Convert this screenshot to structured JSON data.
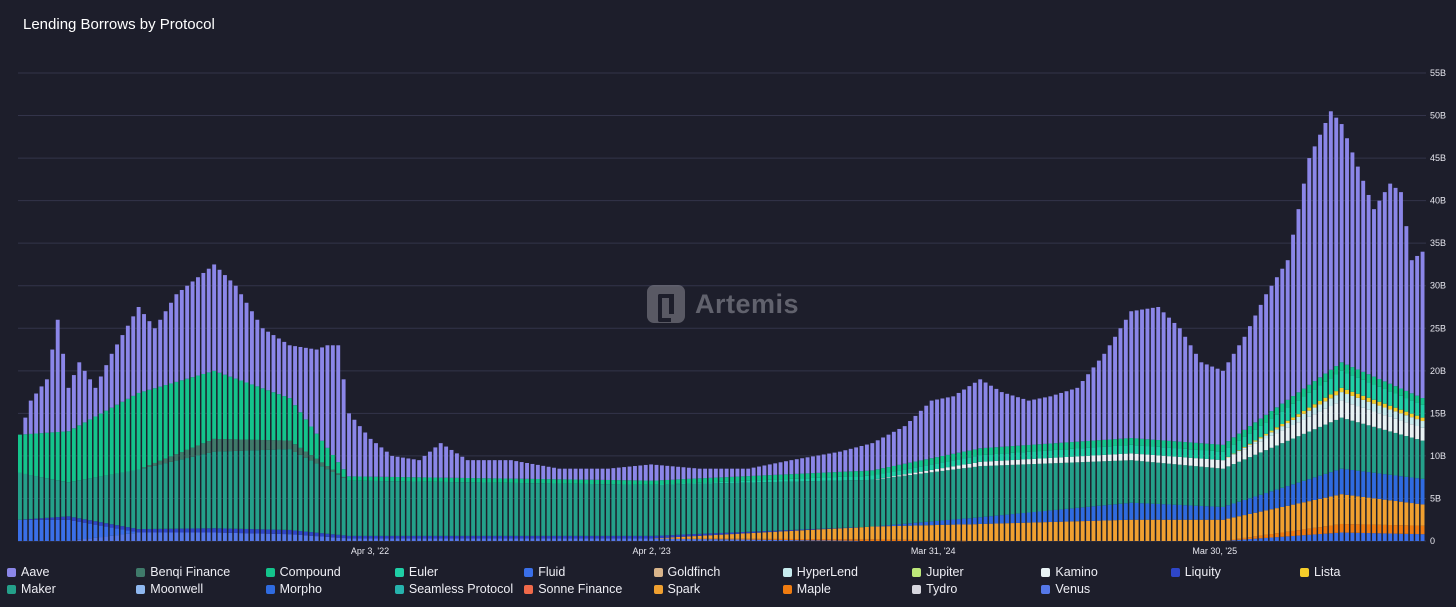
{
  "chart_data": {
    "type": "bar",
    "stacked": true,
    "title": "Lending Borrows by Protocol",
    "xlabel": "",
    "ylabel": "",
    "y_axis_side": "right",
    "ylim": [
      0,
      55
    ],
    "y_unit": "B",
    "y_ticks": [
      "0",
      "5B",
      "10B",
      "15B",
      "20B",
      "25B",
      "30B",
      "35B",
      "40B",
      "45B",
      "50B",
      "55B"
    ],
    "grid": true,
    "legend_position": "bottom",
    "x_range": [
      "2021-01-03",
      "2025-12-28"
    ],
    "bar_interval": "weekly",
    "x_tick_labels": [
      {
        "date": "2022-04-03",
        "label": "Apr 3, '22"
      },
      {
        "date": "2023-04-02",
        "label": "Apr 2, '23"
      },
      {
        "date": "2024-03-31",
        "label": "Mar 31, '24"
      },
      {
        "date": "2025-03-30",
        "label": "Mar 30, '25"
      }
    ],
    "series": [
      {
        "name": "Aave",
        "color": "#8b86e8"
      },
      {
        "name": "Benqi Finance",
        "color": "#3f7a6a"
      },
      {
        "name": "Compound",
        "color": "#14c48c"
      },
      {
        "name": "Euler",
        "color": "#1fcfa6"
      },
      {
        "name": "Fluid",
        "color": "#3a6fe8"
      },
      {
        "name": "Goldfinch",
        "color": "#d8b48a"
      },
      {
        "name": "HyperLend",
        "color": "#c7ecef"
      },
      {
        "name": "Jupiter",
        "color": "#bde87a"
      },
      {
        "name": "Kamino",
        "color": "#e8f2f4"
      },
      {
        "name": "Liquity",
        "color": "#2e46c8"
      },
      {
        "name": "Lista",
        "color": "#f5cd2a"
      },
      {
        "name": "Maker",
        "color": "#24a08a"
      },
      {
        "name": "Moonwell",
        "color": "#8fb8f0"
      },
      {
        "name": "Morpho",
        "color": "#2f6be0"
      },
      {
        "name": "Seamless Protocol",
        "color": "#26b3ad"
      },
      {
        "name": "Sonne Finance",
        "color": "#f06a4a"
      },
      {
        "name": "Spark",
        "color": "#f0a030"
      },
      {
        "name": "Maple",
        "color": "#f07c10"
      },
      {
        "name": "Tydro",
        "color": "#d6d6de"
      },
      {
        "name": "Venus",
        "color": "#5578e8"
      }
    ],
    "total_keyframes": [
      [
        "2021-01-03",
        12.5
      ],
      [
        "2021-01-17",
        16.5
      ],
      [
        "2021-02-07",
        19
      ],
      [
        "2021-02-21",
        26
      ],
      [
        "2021-03-07",
        18
      ],
      [
        "2021-03-21",
        21
      ],
      [
        "2021-04-11",
        18
      ],
      [
        "2021-05-02",
        22
      ],
      [
        "2021-06-06",
        27.5
      ],
      [
        "2021-06-27",
        25
      ],
      [
        "2021-07-25",
        29
      ],
      [
        "2021-08-22",
        31
      ],
      [
        "2021-09-12",
        32.5
      ],
      [
        "2021-10-10",
        30
      ],
      [
        "2021-11-14",
        25
      ],
      [
        "2021-12-19",
        23
      ],
      [
        "2022-01-23",
        22.5
      ],
      [
        "2022-02-06",
        23
      ],
      [
        "2022-02-20",
        23
      ],
      [
        "2022-03-06",
        15
      ],
      [
        "2022-04-03",
        12
      ],
      [
        "2022-05-01",
        10
      ],
      [
        "2022-06-05",
        9.5
      ],
      [
        "2022-07-03",
        11.5
      ],
      [
        "2022-08-07",
        9.5
      ],
      [
        "2022-10-02",
        9.5
      ],
      [
        "2022-12-04",
        8.5
      ],
      [
        "2023-02-05",
        8.5
      ],
      [
        "2023-04-02",
        9
      ],
      [
        "2023-06-04",
        8.5
      ],
      [
        "2023-08-06",
        8.5
      ],
      [
        "2023-10-01",
        9.5
      ],
      [
        "2023-12-03",
        10.5
      ],
      [
        "2024-01-14",
        11.5
      ],
      [
        "2024-02-25",
        13.5
      ],
      [
        "2024-03-31",
        16.5
      ],
      [
        "2024-04-28",
        17
      ],
      [
        "2024-06-02",
        19
      ],
      [
        "2024-06-30",
        17.5
      ],
      [
        "2024-08-04",
        16.5
      ],
      [
        "2024-09-01",
        17
      ],
      [
        "2024-10-06",
        18
      ],
      [
        "2024-11-10",
        22
      ],
      [
        "2024-12-15",
        27
      ],
      [
        "2025-01-19",
        27.5
      ],
      [
        "2025-02-16",
        25
      ],
      [
        "2025-03-16",
        21
      ],
      [
        "2025-04-13",
        20
      ],
      [
        "2025-05-11",
        24
      ],
      [
        "2025-06-08",
        29
      ],
      [
        "2025-07-06",
        33
      ],
      [
        "2025-08-03",
        45
      ],
      [
        "2025-08-31",
        50.5
      ],
      [
        "2025-09-14",
        49
      ],
      [
        "2025-10-05",
        44
      ],
      [
        "2025-10-26",
        39
      ],
      [
        "2025-11-16",
        42
      ],
      [
        "2025-11-30",
        41
      ],
      [
        "2025-12-14",
        33
      ],
      [
        "2025-12-28",
        34
      ]
    ],
    "breakdown_keyframes": [
      {
        "date": "2021-01-03",
        "Maker": 5.5,
        "Compound": 4.5,
        "Fluid": 2.5,
        "Venus": 0
      },
      {
        "date": "2021-03-07",
        "Maker": 4,
        "Compound": 6,
        "Fluid": 2.5,
        "Liquity": 0.4
      },
      {
        "date": "2021-06-06",
        "Maker": 7,
        "Compound": 9,
        "Liquity": 0.4,
        "Venus": 1
      },
      {
        "date": "2021-09-12",
        "Maker": 9,
        "Compound": 8,
        "Liquity": 0.5,
        "Benqi Finance": 1.5,
        "Venus": 1
      },
      {
        "date": "2021-12-19",
        "Maker": 9.5,
        "Compound": 5,
        "Liquity": 0.5,
        "Benqi Finance": 1,
        "Venus": 0.8
      },
      {
        "date": "2022-03-06",
        "Maker": 6.5,
        "Compound": 0.5,
        "Liquity": 0.3,
        "Venus": 0.3
      },
      {
        "date": "2023-04-02",
        "Maker": 6,
        "Compound": 0.5,
        "Liquity": 0.3,
        "Venus": 0.3
      },
      {
        "date": "2024-01-14",
        "Maker": 5.5,
        "Euler": 0.5,
        "Spark": 1.5,
        "Maple": 0.2,
        "Compound": 0.6
      },
      {
        "date": "2024-06-02",
        "Maker": 6,
        "Euler": 0.8,
        "Spark": 2,
        "Morpho": 0.8,
        "Kamino": 0.5,
        "Compound": 0.8
      },
      {
        "date": "2024-12-15",
        "Maker": 5,
        "Euler": 1,
        "Spark": 2.5,
        "Morpho": 2,
        "Kamino": 0.8,
        "Compound": 0.8
      },
      {
        "date": "2025-04-13",
        "Maker": 4.5,
        "Euler": 1,
        "Spark": 2.5,
        "Morpho": 1.5,
        "Kamino": 1,
        "Compound": 0.8
      },
      {
        "date": "2025-09-14",
        "Maker": 6,
        "Euler": 2,
        "Spark": 3.5,
        "Maple": 1,
        "Morpho": 3,
        "Fluid": 1,
        "Kamino": 2,
        "Lista": 0.5,
        "HyperLend": 1,
        "Compound": 1
      },
      {
        "date": "2025-12-28",
        "Maker": 4.5,
        "Euler": 1.5,
        "Spark": 2.5,
        "Maple": 1,
        "Morpho": 3,
        "Fluid": 0.8,
        "Kamino": 1.5,
        "Lista": 0.4,
        "HyperLend": 0.8,
        "Compound": 0.8
      }
    ]
  },
  "watermark": {
    "text": "Artemis"
  }
}
